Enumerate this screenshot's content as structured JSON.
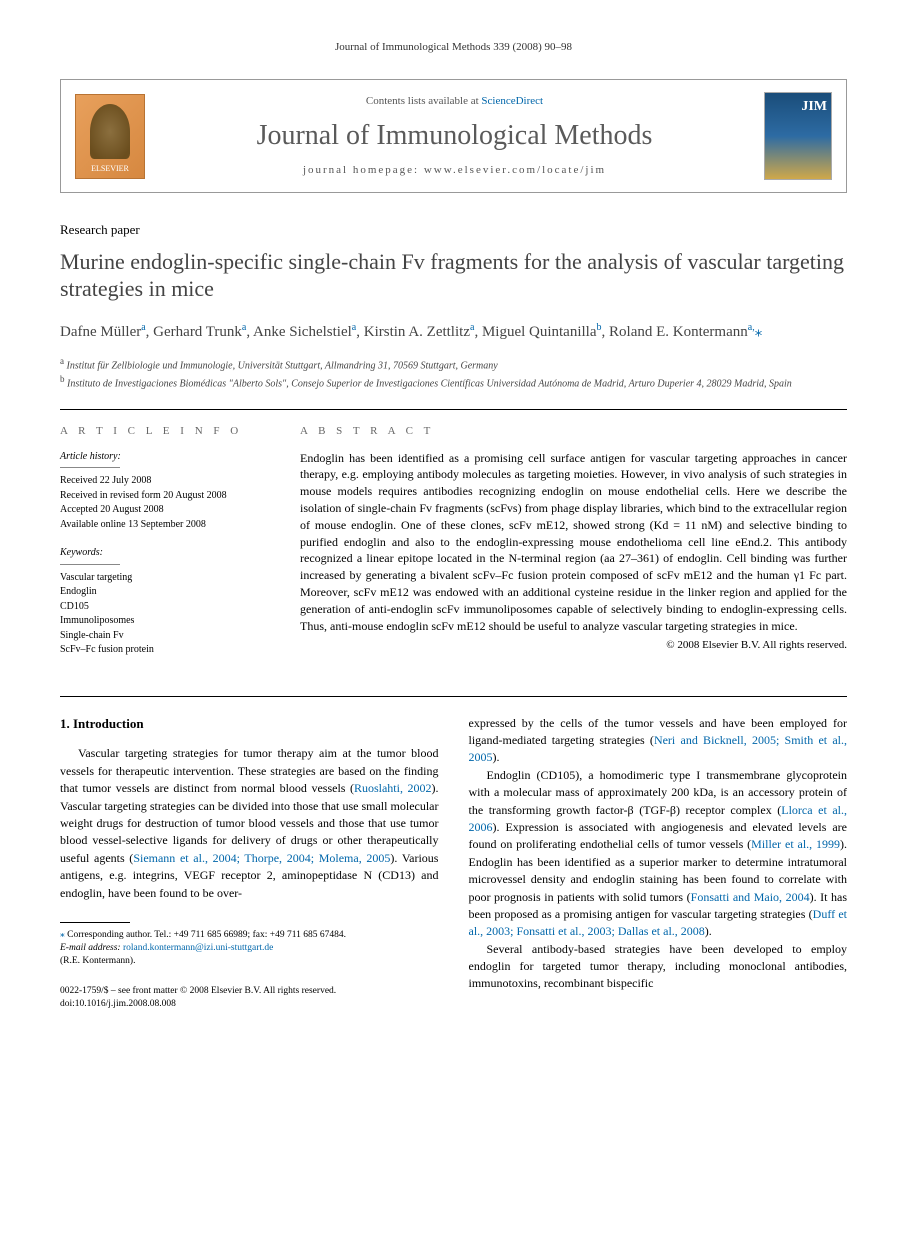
{
  "running_head": "Journal of Immunological Methods 339 (2008) 90–98",
  "header": {
    "publisher_name": "ELSEVIER",
    "contents_prefix": "Contents lists available at ",
    "contents_link": "ScienceDirect",
    "journal_title": "Journal of Immunological Methods",
    "homepage_prefix": "journal homepage: ",
    "homepage_url": "www.elsevier.com/locate/jim",
    "cover_abbr": "JIM"
  },
  "article": {
    "type": "Research paper",
    "title": "Murine endoglin-specific single-chain Fv fragments for the analysis of vascular targeting strategies in mice",
    "authors_html": "Dafne Müller<sup>a</sup>, Gerhard Trunk<sup>a</sup>, Anke Sichelstiel<sup>a</sup>, Kirstin A. Zettlitz<sup>a</sup>, Miguel Quintanilla<sup>b</sup>, Roland E. Kontermann<sup>a,</sup>",
    "affiliations": {
      "a": "Institut für Zellbiologie und Immunologie, Universität Stuttgart, Allmandring 31, 70569 Stuttgart, Germany",
      "b": "Instituto de Investigaciones Biomédicas \"Alberto Sols\", Consejo Superior de Investigaciones Científicas Universidad Autónoma de Madrid, Arturo Duperier 4, 28029 Madrid, Spain"
    }
  },
  "article_info": {
    "heading": "A R T I C L E   I N F O",
    "history_label": "Article history:",
    "history": [
      "Received 22 July 2008",
      "Received in revised form 20 August 2008",
      "Accepted 20 August 2008",
      "Available online 13 September 2008"
    ],
    "keywords_label": "Keywords:",
    "keywords": [
      "Vascular targeting",
      "Endoglin",
      "CD105",
      "Immunoliposomes",
      "Single-chain Fv",
      "ScFv–Fc fusion protein"
    ]
  },
  "abstract": {
    "heading": "A B S T R A C T",
    "text": "Endoglin has been identified as a promising cell surface antigen for vascular targeting approaches in cancer therapy, e.g. employing antibody molecules as targeting moieties. However, in vivo analysis of such strategies in mouse models requires antibodies recognizing endoglin on mouse endothelial cells. Here we describe the isolation of single-chain Fv fragments (scFvs) from phage display libraries, which bind to the extracellular region of mouse endoglin. One of these clones, scFv mE12, showed strong (Kd = 11 nM) and selective binding to purified endoglin and also to the endoglin-expressing mouse endothelioma cell line eEnd.2. This antibody recognized a linear epitope located in the N-terminal region (aa 27–361) of endoglin. Cell binding was further increased by generating a bivalent scFv–Fc fusion protein composed of scFv mE12 and the human γ1 Fc part. Moreover, scFv mE12 was endowed with an additional cysteine residue in the linker region and applied for the generation of anti-endoglin scFv immunoliposomes capable of selectively binding to endoglin-expressing cells. Thus, anti-mouse endoglin scFv mE12 should be useful to analyze vascular targeting strategies in mice.",
    "copyright": "© 2008 Elsevier B.V. All rights reserved."
  },
  "body": {
    "section_heading": "1. Introduction",
    "left_paragraphs": [
      "Vascular targeting strategies for tumor therapy aim at the tumor blood vessels for therapeutic intervention. These strategies are based on the finding that tumor vessels are distinct from normal blood vessels (<span class=\"cite\">Ruoslahti, 2002</span>). Vascular targeting strategies can be divided into those that use small molecular weight drugs for destruction of tumor blood vessels and those that use tumor blood vessel-selective ligands for delivery of drugs or other therapeutically useful agents (<span class=\"cite\">Siemann et al., 2004; Thorpe, 2004; Molema, 2005</span>). Various antigens, e.g. integrins, VEGF receptor 2, aminopeptidase N (CD13) and endoglin, have been found to be over-"
    ],
    "right_paragraphs": [
      "expressed by the cells of the tumor vessels and have been employed for ligand-mediated targeting strategies (<span class=\"cite\">Neri and Bicknell, 2005; Smith et al., 2005</span>).",
      "Endoglin (CD105), a homodimeric type I transmembrane glycoprotein with a molecular mass of approximately 200 kDa, is an accessory protein of the transforming growth factor-β (TGF-β) receptor complex (<span class=\"cite\">Llorca et al., 2006</span>). Expression is associated with angiogenesis and elevated levels are found on proliferating endothelial cells of tumor vessels (<span class=\"cite\">Miller et al., 1999</span>). Endoglin has been identified as a superior marker to determine intratumoral microvessel density and endoglin staining has been found to correlate with poor prognosis in patients with solid tumors (<span class=\"cite\">Fonsatti and Maio, 2004</span>). It has been proposed as a promising antigen for vascular targeting strategies (<span class=\"cite\">Duff et al., 2003; Fonsatti et al., 2003; Dallas et al., 2008</span>).",
      "Several antibody-based strategies have been developed to employ endoglin for targeted tumor therapy, including monoclonal antibodies, immunotoxins, recombinant bispecific"
    ]
  },
  "footnote": {
    "corr_line": "Corresponding author. Tel.: +49 711 685 66989; fax: +49 711 685 67484.",
    "email_label": "E-mail address: ",
    "email": "roland.kontermann@izi.uni-stuttgart.de",
    "email_owner": "(R.E. Kontermann)."
  },
  "footer": {
    "issn_line": "0022-1759/$ – see front matter © 2008 Elsevier B.V. All rights reserved.",
    "doi_line": "doi:10.1016/j.jim.2008.08.008"
  }
}
